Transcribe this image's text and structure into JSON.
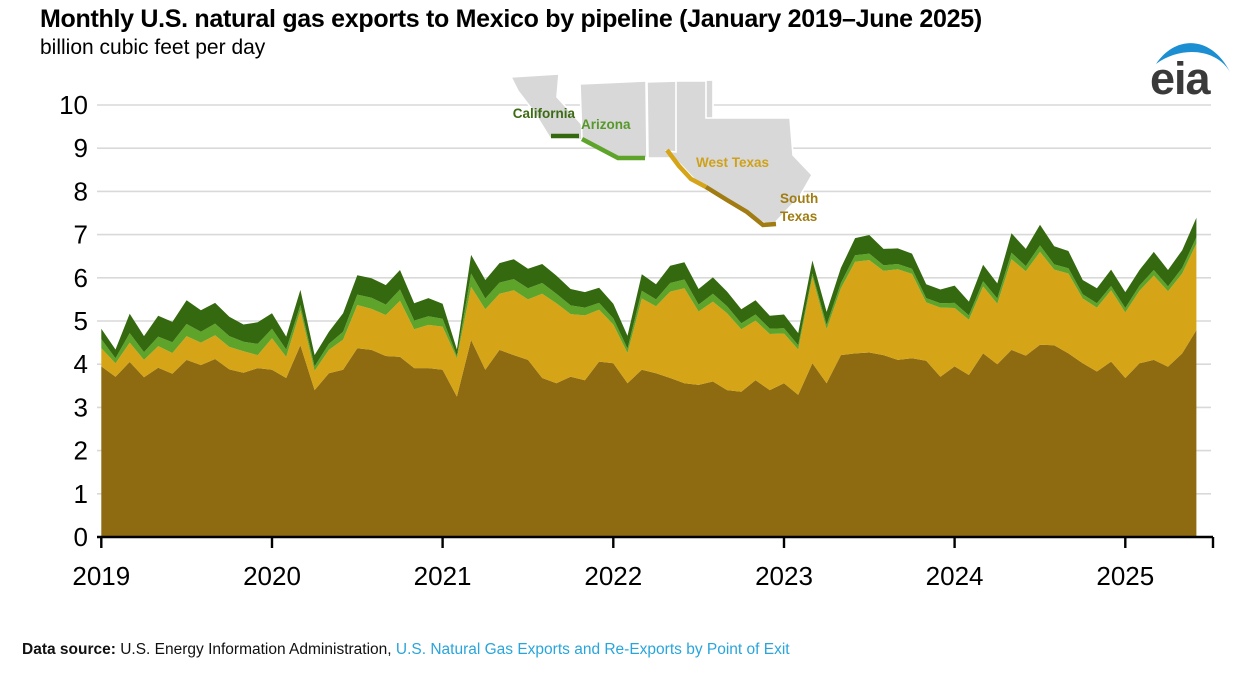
{
  "header": {
    "title": "Monthly U.S. natural gas exports to Mexico by pipeline (January 2019–June 2025)",
    "subtitle": "billion cubic feet per day",
    "logo_text": "eia",
    "logo_color": "#1b8fd1"
  },
  "map": {
    "labels": {
      "california": "California",
      "arizona": "Arizona",
      "west_texas": "West Texas",
      "south_texas_line1": "South",
      "south_texas_line2": "Texas"
    },
    "label_colors": {
      "california": "#3c6b14",
      "arizona": "#57982a",
      "west_texas": "#cfa11a",
      "south_texas": "#a07c12"
    },
    "state_fill": "#d8d8d8"
  },
  "footer": {
    "prefix": "Data source: ",
    "source": "U.S. Energy Information Administration, ",
    "link": "U.S. Natural Gas Exports and Re-Exports by Point of Exit",
    "link_color": "#29a5dc"
  },
  "chart_data": {
    "type": "area",
    "stacked": true,
    "title": "Monthly U.S. natural gas exports to Mexico by pipeline (January 2019–June 2025)",
    "ylabel": "billion cubic feet per day",
    "xlabel": "",
    "frequency": "monthly",
    "x_start": "2019-01",
    "x_end": "2025-06",
    "n_points": 78,
    "ylim": [
      0,
      10
    ],
    "grid": "horizontal",
    "legend_position": "map-inset",
    "y_ticks": [
      0,
      1,
      2,
      3,
      4,
      5,
      6,
      7,
      8,
      9,
      10
    ],
    "x_tick_labels": [
      "2019",
      "2020",
      "2021",
      "2022",
      "2023",
      "2024",
      "2025"
    ],
    "series": [
      {
        "name": "South Texas",
        "color": "#8e6b10",
        "values": [
          3.95,
          3.71,
          4.05,
          3.7,
          3.92,
          3.78,
          4.1,
          3.98,
          4.12,
          3.88,
          3.8,
          3.91,
          3.87,
          3.68,
          4.44,
          3.4,
          3.79,
          3.87,
          4.37,
          4.33,
          4.19,
          4.17,
          3.91,
          3.91,
          3.87,
          3.25,
          4.56,
          3.87,
          4.33,
          4.21,
          4.1,
          3.68,
          3.56,
          3.71,
          3.63,
          4.06,
          4.02,
          3.56,
          3.87,
          3.79,
          3.68,
          3.56,
          3.52,
          3.6,
          3.4,
          3.36,
          3.63,
          3.4,
          3.56,
          3.29,
          4.02,
          3.56,
          4.21,
          4.25,
          4.27,
          4.21,
          4.1,
          4.14,
          4.08,
          3.71,
          3.95,
          3.75,
          4.25,
          4.0,
          4.33,
          4.2,
          4.45,
          4.44,
          4.25,
          4.02,
          3.83,
          4.06,
          3.68,
          4.02,
          4.1,
          3.94,
          4.25,
          4.79
        ]
      },
      {
        "name": "West Texas",
        "color": "#d5a417",
        "values": [
          0.42,
          0.31,
          0.45,
          0.4,
          0.5,
          0.48,
          0.55,
          0.52,
          0.55,
          0.52,
          0.5,
          0.3,
          0.73,
          0.49,
          0.81,
          0.45,
          0.54,
          0.7,
          1.0,
          0.95,
          0.95,
          1.3,
          0.9,
          1.0,
          1.0,
          0.89,
          1.23,
          1.4,
          1.3,
          1.5,
          1.4,
          1.95,
          1.85,
          1.45,
          1.5,
          1.2,
          0.9,
          0.7,
          1.65,
          1.55,
          2.0,
          2.2,
          1.7,
          1.85,
          1.78,
          1.45,
          1.38,
          1.3,
          1.15,
          1.05,
          2.0,
          1.25,
          1.55,
          2.12,
          2.14,
          1.95,
          2.1,
          1.95,
          1.35,
          1.6,
          1.35,
          1.28,
          1.55,
          1.4,
          2.1,
          1.95,
          2.15,
          1.75,
          1.85,
          1.5,
          1.48,
          1.65,
          1.52,
          1.68,
          1.95,
          1.75,
          1.85,
          2.0
        ]
      },
      {
        "name": "Arizona",
        "color": "#5ea32a",
        "values": [
          0.21,
          0.12,
          0.22,
          0.18,
          0.22,
          0.25,
          0.28,
          0.25,
          0.27,
          0.25,
          0.22,
          0.26,
          0.22,
          0.17,
          0.12,
          0.1,
          0.14,
          0.18,
          0.24,
          0.26,
          0.24,
          0.26,
          0.2,
          0.2,
          0.18,
          0.05,
          0.31,
          0.25,
          0.26,
          0.26,
          0.26,
          0.25,
          0.22,
          0.2,
          0.18,
          0.16,
          0.14,
          0.1,
          0.18,
          0.16,
          0.2,
          0.2,
          0.16,
          0.18,
          0.16,
          0.14,
          0.14,
          0.12,
          0.12,
          0.1,
          0.08,
          0.1,
          0.12,
          0.15,
          0.15,
          0.13,
          0.12,
          0.12,
          0.1,
          0.1,
          0.12,
          0.1,
          0.12,
          0.12,
          0.15,
          0.12,
          0.15,
          0.12,
          0.12,
          0.1,
          0.1,
          0.1,
          0.1,
          0.12,
          0.13,
          0.11,
          0.13,
          0.15
        ]
      },
      {
        "name": "California",
        "color": "#35690f",
        "values": [
          0.24,
          0.2,
          0.45,
          0.37,
          0.48,
          0.47,
          0.55,
          0.5,
          0.48,
          0.45,
          0.4,
          0.5,
          0.36,
          0.3,
          0.35,
          0.26,
          0.28,
          0.43,
          0.45,
          0.45,
          0.45,
          0.45,
          0.4,
          0.42,
          0.35,
          0.15,
          0.43,
          0.43,
          0.45,
          0.46,
          0.45,
          0.44,
          0.42,
          0.38,
          0.36,
          0.35,
          0.34,
          0.3,
          0.38,
          0.35,
          0.4,
          0.4,
          0.36,
          0.38,
          0.34,
          0.32,
          0.33,
          0.3,
          0.32,
          0.28,
          0.3,
          0.3,
          0.35,
          0.4,
          0.43,
          0.38,
          0.36,
          0.35,
          0.32,
          0.32,
          0.4,
          0.32,
          0.38,
          0.35,
          0.45,
          0.4,
          0.48,
          0.42,
          0.4,
          0.33,
          0.35,
          0.38,
          0.37,
          0.36,
          0.42,
          0.38,
          0.41,
          0.45
        ]
      }
    ]
  }
}
